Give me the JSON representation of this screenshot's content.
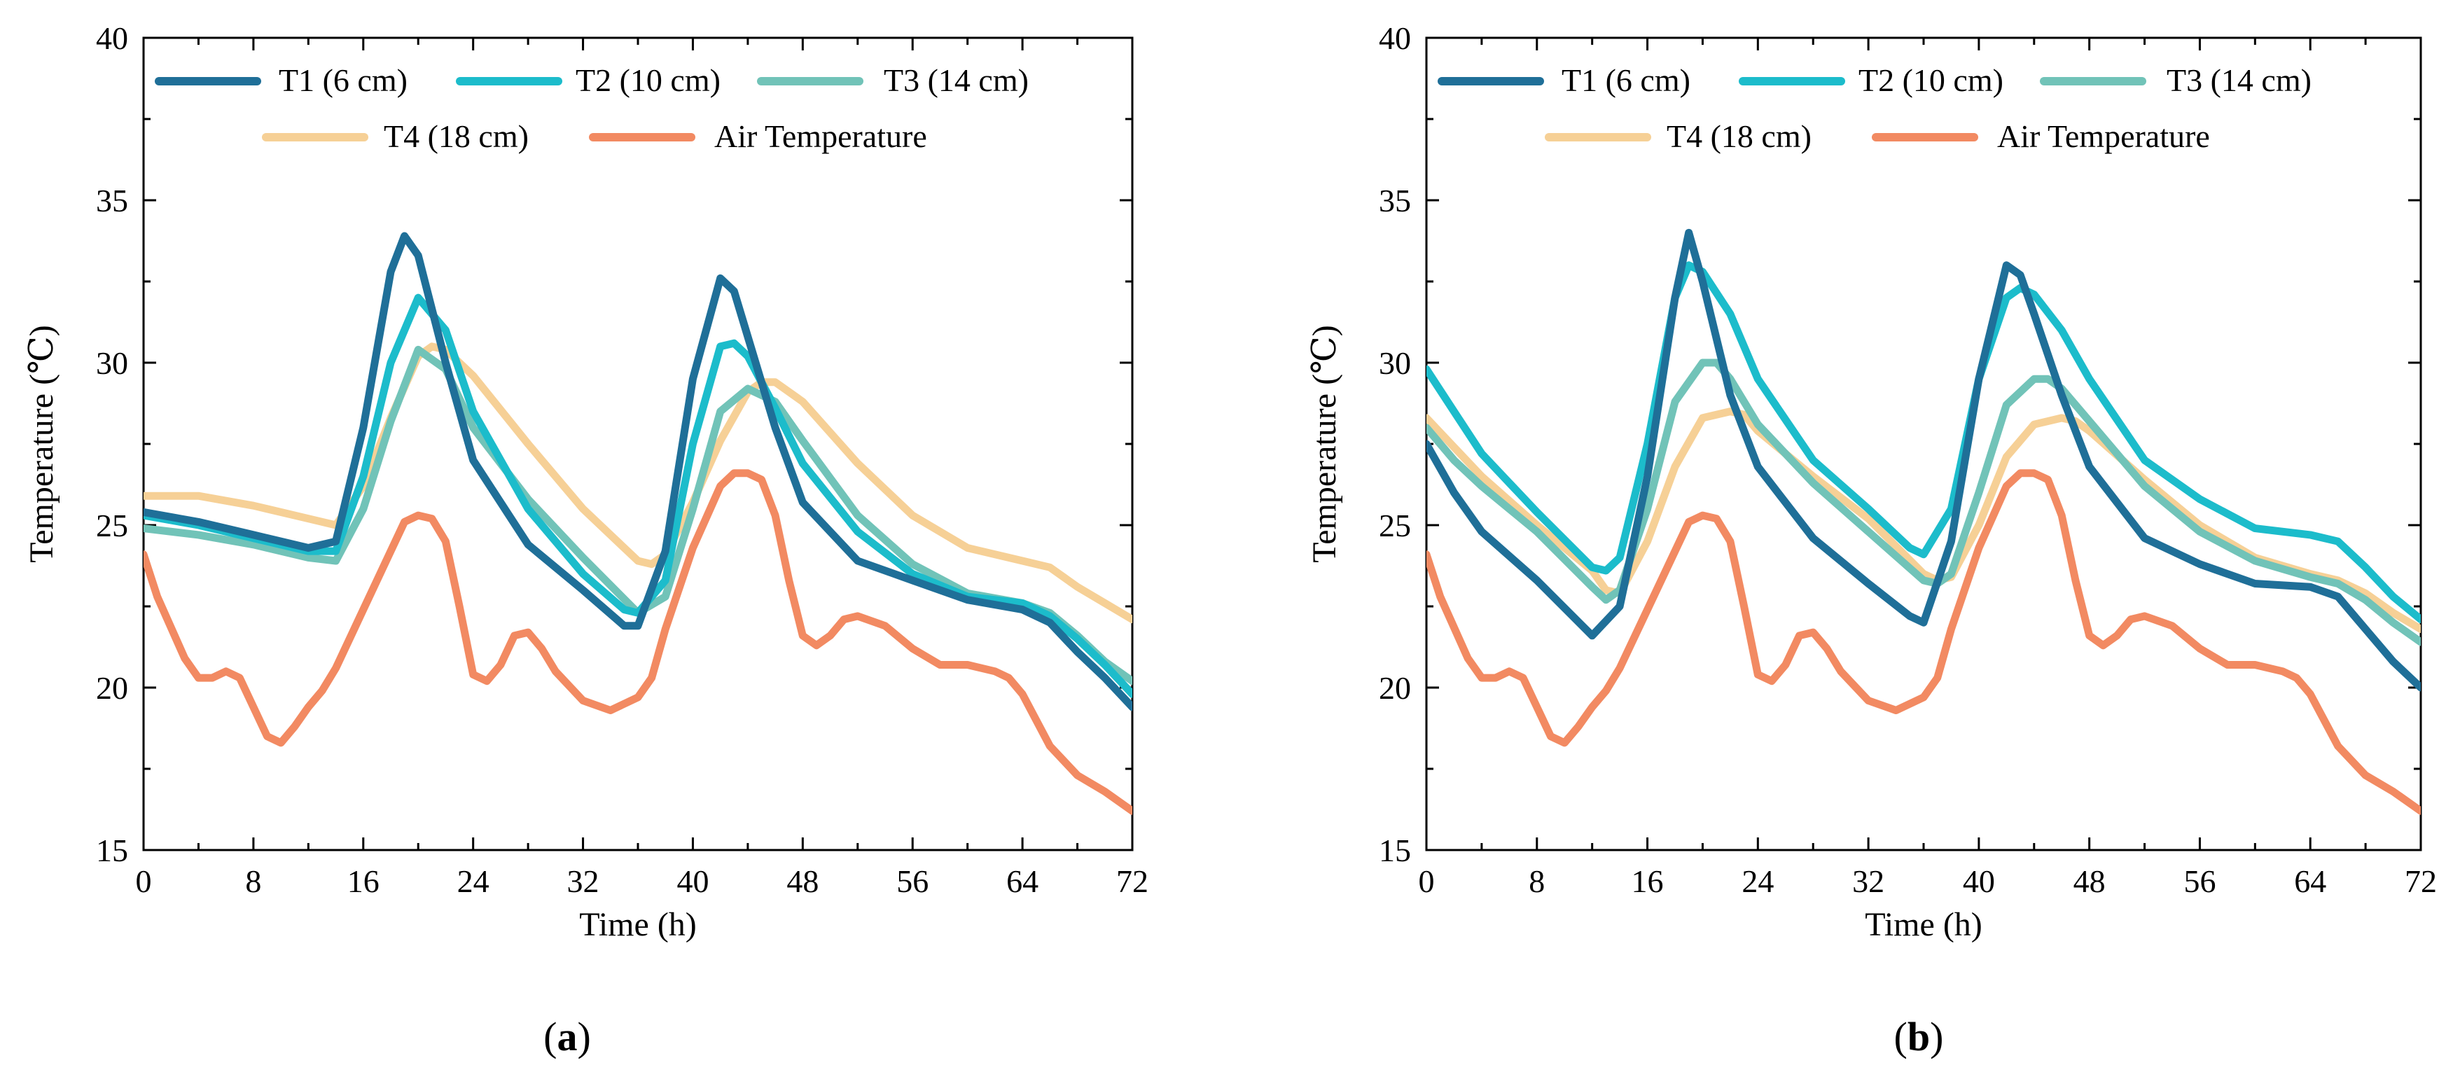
{
  "colors": {
    "T1": "#1f6f98",
    "T2": "#1cbccb",
    "T3": "#71c3b8",
    "T4": "#f6d096",
    "Air": "#f28a62"
  },
  "chart_data": [
    {
      "type": "line",
      "panel_label": "a",
      "xlabel": "Time (h)",
      "ylabel": "Temperature (℃)",
      "xlim": [
        0,
        72
      ],
      "ylim": [
        15,
        40
      ],
      "xticks": [
        0,
        8,
        16,
        24,
        32,
        40,
        48,
        56,
        64,
        72
      ],
      "yticks": [
        15,
        20,
        25,
        30,
        35,
        40
      ],
      "grid": false,
      "legend": "top",
      "series": [
        {
          "name": "T1 (6 cm)",
          "key": "T1",
          "x": [
            0,
            4,
            8,
            12,
            14,
            16,
            18,
            19,
            20,
            22,
            24,
            28,
            32,
            35,
            36,
            38,
            40,
            42,
            43,
            44,
            46,
            48,
            52,
            56,
            60,
            64,
            66,
            68,
            70,
            72
          ],
          "y": [
            25.4,
            25.1,
            24.7,
            24.3,
            24.5,
            28,
            32.8,
            33.9,
            33.3,
            30,
            27,
            24.4,
            23,
            21.9,
            21.9,
            24.2,
            29.5,
            32.6,
            32.2,
            30.8,
            28,
            25.7,
            23.9,
            23.3,
            22.7,
            22.4,
            22,
            21.1,
            20.3,
            19.4
          ]
        },
        {
          "name": "T2 (10 cm)",
          "key": "T2",
          "x": [
            0,
            4,
            8,
            12,
            14,
            16,
            18,
            20,
            22,
            24,
            28,
            32,
            35,
            36,
            38,
            40,
            42,
            43,
            44,
            46,
            48,
            52,
            56,
            60,
            64,
            66,
            68,
            70,
            72
          ],
          "y": [
            25.3,
            25,
            24.6,
            24.2,
            24.2,
            26.5,
            30,
            32,
            31,
            28.5,
            25.5,
            23.5,
            22.4,
            22.3,
            23.3,
            27.5,
            30.5,
            30.6,
            30.2,
            28.6,
            26.9,
            24.8,
            23.5,
            22.8,
            22.6,
            22.2,
            21.5,
            20.7,
            19.8
          ]
        },
        {
          "name": "T3 (14 cm)",
          "key": "T3",
          "x": [
            0,
            4,
            8,
            12,
            14,
            16,
            18,
            20,
            22,
            24,
            28,
            32,
            36,
            38,
            40,
            42,
            44,
            46,
            48,
            52,
            56,
            60,
            64,
            66,
            68,
            70,
            72
          ],
          "y": [
            24.9,
            24.7,
            24.4,
            24,
            23.9,
            25.5,
            28.2,
            30.4,
            29.8,
            28,
            25.8,
            24,
            22.3,
            22.8,
            25.5,
            28.5,
            29.2,
            28.8,
            27.6,
            25.3,
            23.8,
            22.9,
            22.6,
            22.3,
            21.6,
            20.8,
            20.2
          ]
        },
        {
          "name": "T4 (18 cm)",
          "key": "T4",
          "x": [
            0,
            4,
            8,
            12,
            14,
            16,
            18,
            20,
            21,
            22,
            24,
            28,
            32,
            36,
            37,
            38,
            40,
            42,
            44,
            45,
            46,
            48,
            52,
            56,
            60,
            64,
            66,
            68,
            70,
            72
          ],
          "y": [
            25.9,
            25.9,
            25.6,
            25.2,
            25,
            26.2,
            28.3,
            30.2,
            30.5,
            30.4,
            29.6,
            27.5,
            25.5,
            23.9,
            23.8,
            24.1,
            25.7,
            27.6,
            29.1,
            29.4,
            29.4,
            28.8,
            26.9,
            25.3,
            24.3,
            23.9,
            23.7,
            23.1,
            22.6,
            22.1
          ]
        },
        {
          "name": "Air Temperature",
          "key": "Air",
          "x": [
            0,
            1,
            3,
            4,
            5,
            6,
            7,
            8,
            9,
            10,
            11,
            12,
            13,
            14,
            16,
            18,
            19,
            20,
            21,
            22,
            23,
            24,
            25,
            26,
            27,
            28,
            29,
            30,
            32,
            34,
            36,
            37,
            38,
            40,
            42,
            43,
            44,
            45,
            46,
            47,
            48,
            49,
            50,
            51,
            52,
            54,
            56,
            58,
            60,
            62,
            63,
            64,
            66,
            68,
            70,
            72
          ],
          "y": [
            24.1,
            22.8,
            20.9,
            20.3,
            20.3,
            20.5,
            20.3,
            19.4,
            18.5,
            18.3,
            18.8,
            19.4,
            19.9,
            20.6,
            22.4,
            24.2,
            25.1,
            25.3,
            25.2,
            24.5,
            22.5,
            20.4,
            20.2,
            20.7,
            21.6,
            21.7,
            21.2,
            20.5,
            19.6,
            19.3,
            19.7,
            20.3,
            21.8,
            24.3,
            26.2,
            26.6,
            26.6,
            26.4,
            25.3,
            23.3,
            21.6,
            21.3,
            21.6,
            22.1,
            22.2,
            21.9,
            21.2,
            20.7,
            20.7,
            20.5,
            20.3,
            19.8,
            18.2,
            17.3,
            16.8,
            16.2
          ]
        }
      ]
    },
    {
      "type": "line",
      "panel_label": "b",
      "xlabel": "Time (h)",
      "ylabel": "Temperature (℃)",
      "xlim": [
        0,
        72
      ],
      "ylim": [
        15,
        40
      ],
      "xticks": [
        0,
        8,
        16,
        24,
        32,
        40,
        48,
        56,
        64,
        72
      ],
      "yticks": [
        15,
        20,
        25,
        30,
        35,
        40
      ],
      "grid": false,
      "legend": "top",
      "series": [
        {
          "name": "T1 (6 cm)",
          "key": "T1",
          "x": [
            0,
            2,
            4,
            8,
            12,
            14,
            16,
            18,
            19,
            20,
            22,
            24,
            28,
            32,
            35,
            36,
            38,
            40,
            42,
            43,
            44,
            46,
            48,
            52,
            56,
            60,
            64,
            66,
            68,
            70,
            72
          ],
          "y": [
            27.5,
            26,
            24.8,
            23.3,
            21.6,
            22.5,
            26.5,
            32,
            34,
            32.5,
            29,
            26.8,
            24.6,
            23.2,
            22.2,
            22,
            24.5,
            29.5,
            33,
            32.7,
            31.5,
            29,
            26.8,
            24.6,
            23.8,
            23.2,
            23.1,
            22.8,
            21.8,
            20.8,
            20
          ]
        },
        {
          "name": "T2 (10 cm)",
          "key": "T2",
          "x": [
            0,
            2,
            4,
            8,
            12,
            13,
            14,
            16,
            18,
            19,
            20,
            22,
            24,
            28,
            32,
            35,
            36,
            38,
            40,
            42,
            43,
            44,
            46,
            48,
            52,
            56,
            60,
            64,
            66,
            68,
            70,
            72
          ],
          "y": [
            29.8,
            28.5,
            27.2,
            25.4,
            23.7,
            23.6,
            24,
            27.5,
            32,
            33,
            32.8,
            31.5,
            29.5,
            27,
            25.5,
            24.3,
            24.1,
            25.5,
            29.5,
            32,
            32.3,
            32.1,
            31,
            29.5,
            27,
            25.8,
            24.9,
            24.7,
            24.5,
            23.7,
            22.8,
            22.1
          ]
        },
        {
          "name": "T3 (14 cm)",
          "key": "T3",
          "x": [
            0,
            2,
            4,
            8,
            12,
            13,
            14,
            16,
            18,
            20,
            21,
            22,
            24,
            28,
            32,
            36,
            37,
            38,
            40,
            42,
            44,
            45,
            46,
            48,
            52,
            56,
            60,
            64,
            66,
            68,
            70,
            72
          ],
          "y": [
            28,
            27,
            26.2,
            24.8,
            23.1,
            22.7,
            23,
            25.5,
            28.8,
            30,
            30,
            29.5,
            28.1,
            26.3,
            24.8,
            23.3,
            23.2,
            23.5,
            26,
            28.7,
            29.5,
            29.5,
            29.2,
            28.2,
            26.2,
            24.8,
            23.9,
            23.4,
            23.2,
            22.7,
            22,
            21.4
          ]
        },
        {
          "name": "T4 (18 cm)",
          "key": "T4",
          "x": [
            0,
            2,
            4,
            8,
            12,
            13,
            14,
            16,
            18,
            20,
            22,
            23,
            24,
            28,
            32,
            36,
            37,
            38,
            40,
            42,
            44,
            46,
            47,
            48,
            52,
            56,
            60,
            64,
            66,
            68,
            70,
            72
          ],
          "y": [
            28.3,
            27.4,
            26.5,
            25,
            23.6,
            23,
            22.9,
            24.5,
            26.8,
            28.3,
            28.5,
            28.4,
            27.9,
            26.5,
            25.2,
            23.5,
            23.3,
            23.4,
            25,
            27.1,
            28.1,
            28.3,
            28.2,
            27.9,
            26.4,
            25,
            24,
            23.5,
            23.3,
            22.9,
            22.3,
            21.8
          ]
        },
        {
          "name": "Air Temperature",
          "key": "Air",
          "x": [
            0,
            1,
            3,
            4,
            5,
            6,
            7,
            8,
            9,
            10,
            11,
            12,
            13,
            14,
            16,
            18,
            19,
            20,
            21,
            22,
            23,
            24,
            25,
            26,
            27,
            28,
            29,
            30,
            32,
            34,
            36,
            37,
            38,
            40,
            42,
            43,
            44,
            45,
            46,
            47,
            48,
            49,
            50,
            51,
            52,
            54,
            56,
            58,
            60,
            62,
            63,
            64,
            66,
            68,
            70,
            72
          ],
          "y": [
            24.1,
            22.8,
            20.9,
            20.3,
            20.3,
            20.5,
            20.3,
            19.4,
            18.5,
            18.3,
            18.8,
            19.4,
            19.9,
            20.6,
            22.4,
            24.2,
            25.1,
            25.3,
            25.2,
            24.5,
            22.5,
            20.4,
            20.2,
            20.7,
            21.6,
            21.7,
            21.2,
            20.5,
            19.6,
            19.3,
            19.7,
            20.3,
            21.8,
            24.3,
            26.2,
            26.6,
            26.6,
            26.4,
            25.3,
            23.3,
            21.6,
            21.3,
            21.6,
            22.1,
            22.2,
            21.9,
            21.2,
            20.7,
            20.7,
            20.5,
            20.3,
            19.8,
            18.2,
            17.3,
            16.8,
            16.2
          ]
        }
      ]
    }
  ]
}
